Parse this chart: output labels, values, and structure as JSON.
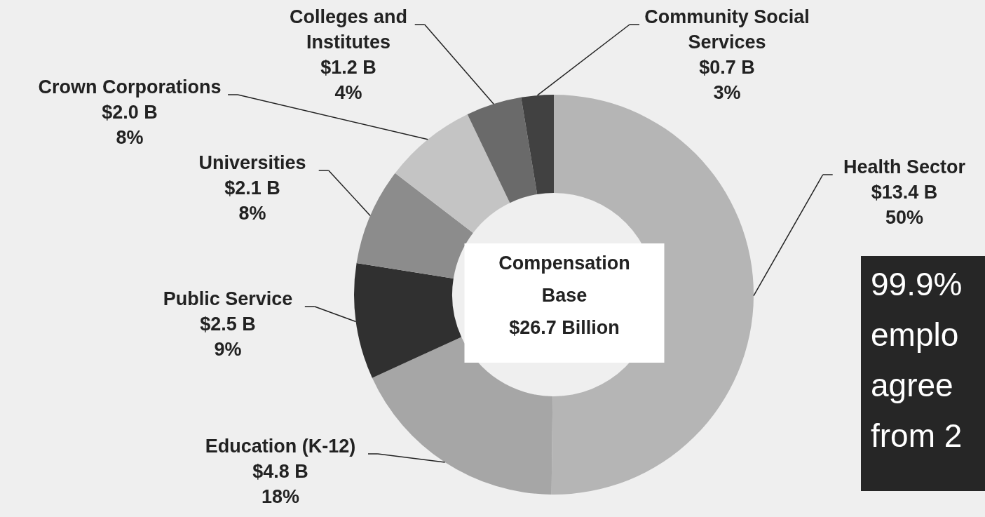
{
  "chart_data": {
    "type": "donut",
    "categories": [
      "Health Sector",
      "Education (K-12)",
      "Public Service",
      "Universities",
      "Crown Corporations",
      "Colleges and Institutes",
      "Community Social Services"
    ],
    "values": [
      13.4,
      4.8,
      2.5,
      2.1,
      2.0,
      1.2,
      0.7
    ],
    "value_labels": [
      "$13.4 B\n50%",
      "$4.8 B\n18%",
      "$2.5 B\n9%",
      "$2.1 B\n8%",
      "$2.0 B\n8%",
      "$1.2 B\n4%",
      "$0.7 B\n3%"
    ],
    "colors": [
      "#b5b5b5",
      "#a6a6a6",
      "#303030",
      "#8c8c8c",
      "#c4c4c4",
      "#6a6a6a",
      "#414141"
    ],
    "annotations": [
      "Compensation\nBase\n$26.7 Billion",
      "99.9%\nemplo\nagree\nfrom 2"
    ]
  }
}
